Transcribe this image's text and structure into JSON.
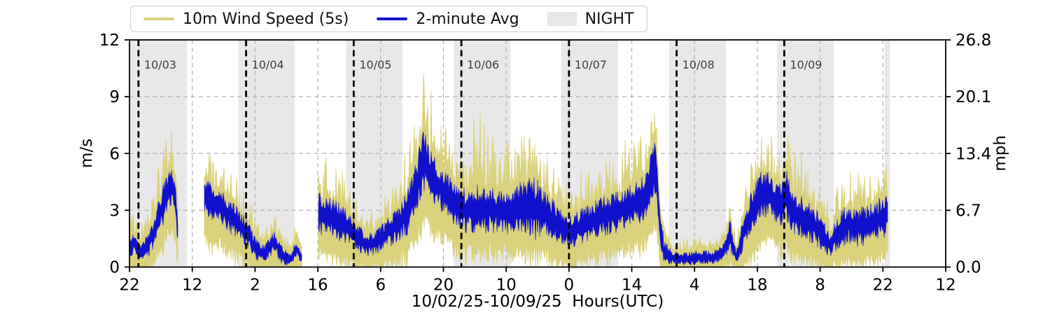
{
  "figure": {
    "kind": "wind speed time series plot",
    "background": "#ffffff"
  },
  "legend": {
    "items": [
      {
        "label": "10m Wind Speed (5s)",
        "swatch": "line",
        "color": "#d9d17b"
      },
      {
        "label": "2-minute Avg",
        "swatch": "line",
        "color": "#1111cd"
      },
      {
        "label": "NIGHT",
        "swatch": "patch",
        "color": "#e8e8e8"
      }
    ]
  },
  "axes": {
    "y_left": {
      "label": "m/s",
      "ticks": [
        "0",
        "3",
        "6",
        "9",
        "12"
      ],
      "tick_values": [
        0,
        3,
        6,
        9,
        12
      ],
      "range": [
        0,
        12
      ]
    },
    "y_right": {
      "label": "mph",
      "ticks": [
        "0.0",
        "6.7",
        "13.4",
        "20.1",
        "26.8"
      ],
      "tick_values": [
        0,
        3,
        6,
        9,
        12
      ]
    },
    "x": {
      "label": "10/02/25-10/09/25  Hours(UTC)",
      "tick_hours": [
        0,
        14,
        28,
        42,
        56,
        70,
        84,
        98,
        112,
        126,
        140,
        154,
        168,
        182
      ],
      "tick_labels": [
        "22",
        "12",
        "2",
        "16",
        "6",
        "20",
        "10",
        "0",
        "14",
        "4",
        "18",
        "8",
        "22",
        "12"
      ]
    }
  },
  "chart_data": {
    "type": "line",
    "x_axis": "hours UTC from 10/02/25 22:00 to 10/10/25 12:00",
    "hours_span": 182,
    "ylim_ms": [
      0,
      12
    ],
    "grid": true,
    "legend_position": "top-left, above axes",
    "series": [
      {
        "name": "10m Wind Speed (5s)",
        "color": "#d9d17b",
        "role": "5-second samples, gust/lull envelope around the average"
      },
      {
        "name": "2-minute Avg",
        "color": "#1111cd",
        "role": "2-minute average wind speed band"
      }
    ],
    "night_label": "NIGHT",
    "night_color": "#e8e8e8",
    "night_bands_hours": [
      [
        0,
        12.8
      ],
      [
        24.3,
        36.8
      ],
      [
        48.3,
        60.85
      ],
      [
        72.3,
        84.9
      ],
      [
        96.3,
        108.95
      ],
      [
        120.3,
        133.0
      ],
      [
        144.4,
        157.05
      ],
      [
        168.4,
        169.6
      ]
    ],
    "date_lines": [
      {
        "hour": 2,
        "label": "10/03"
      },
      {
        "hour": 26,
        "label": "10/04"
      },
      {
        "hour": 50,
        "label": "10/05"
      },
      {
        "hour": 74,
        "label": "10/06"
      },
      {
        "hour": 98,
        "label": "10/07"
      },
      {
        "hour": 122,
        "label": "10/08"
      },
      {
        "hour": 146,
        "label": "10/09"
      }
    ],
    "data_segments_hours": [
      [
        0,
        10.9
      ],
      [
        16.7,
        38.5
      ],
      [
        42,
        169.1
      ]
    ],
    "data_gaps_hours": [
      [
        10.9,
        16.7
      ],
      [
        38.5,
        42.0
      ]
    ],
    "envelope_control_points_format": [
      "hour_from_start",
      "avg_ms",
      "avg_half_spread_ms",
      "gust_extra_ms"
    ],
    "envelope_control_points": [
      [
        0,
        1.0,
        0.5,
        1.2
      ],
      [
        1.2,
        1.4,
        0.5,
        1.2
      ],
      [
        2.5,
        0.7,
        0.4,
        1.0
      ],
      [
        4,
        1.1,
        0.6,
        1.4
      ],
      [
        5.5,
        1.9,
        0.7,
        1.6
      ],
      [
        7,
        3.0,
        0.9,
        2.0
      ],
      [
        8.5,
        4.0,
        1.0,
        2.4
      ],
      [
        9.5,
        4.4,
        0.9,
        2.6
      ],
      [
        10.3,
        3.2,
        0.8,
        1.8
      ],
      [
        10.9,
        1.6,
        0.6,
        1.2
      ],
      [
        16.7,
        3.7,
        0.8,
        1.8
      ],
      [
        19,
        3.4,
        0.8,
        1.7
      ],
      [
        21,
        3.0,
        0.8,
        1.6
      ],
      [
        23,
        2.6,
        0.8,
        1.6
      ],
      [
        25,
        2.1,
        0.7,
        1.4
      ],
      [
        26.5,
        1.7,
        0.6,
        1.3
      ],
      [
        28,
        1.0,
        0.5,
        1.1
      ],
      [
        30,
        0.7,
        0.4,
        1.0
      ],
      [
        32.3,
        1.4,
        0.5,
        1.0
      ],
      [
        34,
        0.6,
        0.4,
        0.9
      ],
      [
        36,
        0.4,
        0.3,
        0.8
      ],
      [
        37.2,
        1.0,
        0.4,
        0.9
      ],
      [
        38.5,
        0.4,
        0.3,
        0.7
      ],
      [
        42,
        2.9,
        1.0,
        2.8
      ],
      [
        44,
        2.7,
        0.9,
        2.2
      ],
      [
        46,
        2.5,
        0.9,
        2.0
      ],
      [
        48,
        2.2,
        0.8,
        1.8
      ],
      [
        50,
        1.7,
        0.7,
        1.5
      ],
      [
        52,
        1.3,
        0.6,
        1.3
      ],
      [
        54,
        1.2,
        0.5,
        1.2
      ],
      [
        56,
        1.5,
        0.6,
        1.4
      ],
      [
        58,
        1.9,
        0.7,
        1.6
      ],
      [
        60,
        2.3,
        0.8,
        1.8
      ],
      [
        62,
        2.9,
        1.0,
        2.2
      ],
      [
        64,
        4.2,
        1.2,
        2.8
      ],
      [
        65.6,
        5.8,
        1.5,
        3.8
      ],
      [
        67,
        4.9,
        1.1,
        3.0
      ],
      [
        69,
        4.3,
        1.0,
        2.6
      ],
      [
        71,
        3.7,
        1.0,
        2.4
      ],
      [
        73,
        3.2,
        0.9,
        2.4
      ],
      [
        75,
        3.0,
        1.0,
        2.8
      ],
      [
        78,
        3.1,
        1.1,
        4.2
      ],
      [
        81,
        3.0,
        1.0,
        4.0
      ],
      [
        84,
        2.9,
        1.0,
        3.0
      ],
      [
        87,
        3.1,
        1.2,
        2.8
      ],
      [
        90,
        3.2,
        1.5,
        2.6
      ],
      [
        93,
        2.8,
        1.0,
        2.3
      ],
      [
        96,
        2.2,
        0.8,
        2.0
      ],
      [
        98,
        1.8,
        0.7,
        1.8
      ],
      [
        101,
        2.2,
        0.8,
        2.0
      ],
      [
        104,
        2.5,
        0.9,
        2.2
      ],
      [
        107,
        2.8,
        0.9,
        2.4
      ],
      [
        110,
        3.1,
        1.0,
        2.5
      ],
      [
        113,
        3.4,
        1.0,
        2.7
      ],
      [
        115.5,
        3.9,
        1.1,
        3.0
      ],
      [
        117.3,
        5.4,
        1.4,
        3.8
      ],
      [
        118.3,
        2.0,
        1.3,
        1.5
      ],
      [
        119.2,
        0.8,
        0.5,
        0.9
      ],
      [
        121,
        0.5,
        0.3,
        0.8
      ],
      [
        124,
        0.45,
        0.3,
        0.7
      ],
      [
        127,
        0.5,
        0.35,
        0.8
      ],
      [
        130,
        0.5,
        0.3,
        0.7
      ],
      [
        132.5,
        0.8,
        0.4,
        0.9
      ],
      [
        133.8,
        1.8,
        0.7,
        1.2
      ],
      [
        135.3,
        0.5,
        0.35,
        0.8
      ],
      [
        137,
        1.9,
        0.8,
        1.6
      ],
      [
        139,
        3.1,
        1.0,
        2.0
      ],
      [
        141,
        4.0,
        1.1,
        2.2
      ],
      [
        143,
        3.7,
        1.0,
        2.0
      ],
      [
        145,
        3.3,
        1.1,
        2.4
      ],
      [
        146.4,
        3.8,
        1.2,
        3.5
      ],
      [
        148,
        2.9,
        1.0,
        2.2
      ],
      [
        151,
        2.5,
        0.9,
        2.0
      ],
      [
        154,
        1.9,
        0.8,
        1.8
      ],
      [
        156.3,
        1.1,
        0.5,
        1.2
      ],
      [
        158,
        1.9,
        0.8,
        1.7
      ],
      [
        160,
        2.3,
        0.9,
        2.2
      ],
      [
        163,
        2.1,
        0.9,
        2.0
      ],
      [
        166,
        2.4,
        0.9,
        2.2
      ],
      [
        168,
        2.6,
        1.0,
        2.4
      ],
      [
        169.1,
        2.9,
        0.9,
        2.2
      ]
    ],
    "notable_values_ms": {
      "peak_gust": 11.2,
      "peak_gust_hour": 65.6,
      "peak_2min_avg": 7.3,
      "peak_2min_avg_hour": 65.6,
      "secondary_peak_2min_avg": 6.8,
      "secondary_peak_hour": 117.6
    }
  },
  "annotations": {
    "date_label_color": "#3d3d3d"
  },
  "colors": {
    "grid": "#b3b3b3",
    "spine": "#000000",
    "tick_text": "#000000",
    "night": "#e8e8e8",
    "date_line": "#000000"
  }
}
